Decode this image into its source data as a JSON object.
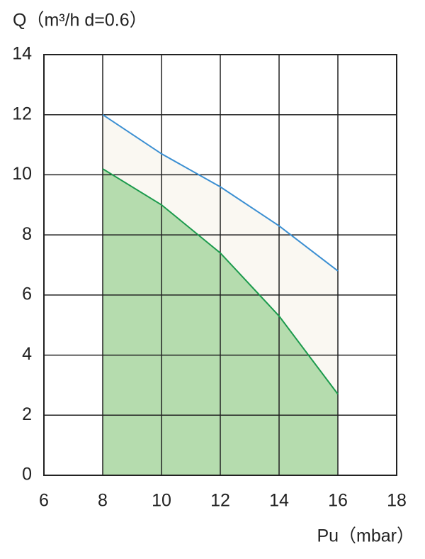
{
  "chart_data": {
    "type": "area",
    "title": "Q（m³/h d=0.6）",
    "x_label": "Pu（mbar）",
    "x": [
      8,
      10,
      12,
      14,
      16
    ],
    "series": [
      {
        "color": "#3b8fd2",
        "fill": "#faf8f2",
        "values": [
          12.0,
          10.7,
          9.6,
          8.3,
          6.8
        ]
      },
      {
        "color": "#1b9a4c",
        "fill": "#b5dcae",
        "values": [
          10.2,
          9.0,
          7.4,
          5.3,
          2.7
        ]
      }
    ],
    "xlim": [
      6,
      18
    ],
    "xticks": [
      6,
      8,
      10,
      12,
      14,
      16,
      18
    ],
    "ylim": [
      0,
      14
    ],
    "yticks": [
      0,
      2,
      4,
      6,
      8,
      10,
      12,
      14
    ],
    "grid": true,
    "grid_color": "#222222"
  }
}
